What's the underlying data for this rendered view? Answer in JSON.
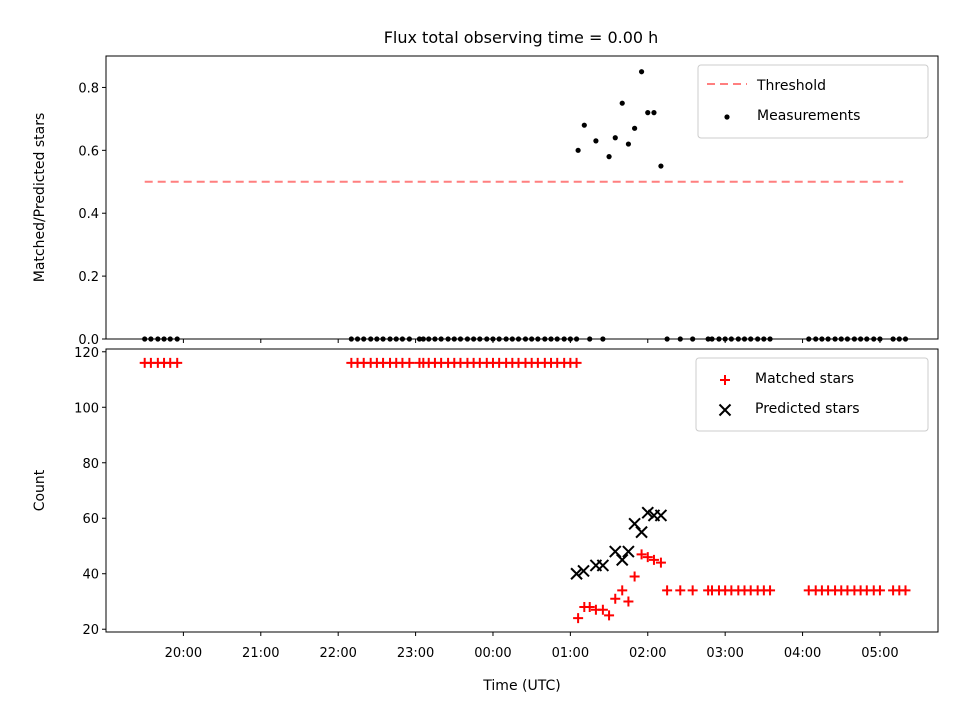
{
  "figure": {
    "title": "Flux total observing time = 0.00 h"
  },
  "chart_data": [
    {
      "type": "scatter",
      "ylabel": "Matched/Predicted stars",
      "xlabel": "",
      "ylim": [
        0.0,
        0.9
      ],
      "yticks": [
        0.0,
        0.2,
        0.4,
        0.6,
        0.8
      ],
      "ytick_labels": [
        "0.0",
        "0.2",
        "0.4",
        "0.6",
        "0.8"
      ],
      "xlim_hours": [
        -5.0,
        5.75
      ],
      "legend_position": "upper right",
      "series": [
        {
          "name": "Threshold",
          "kind": "dashed-line",
          "color": "#ff7f7f",
          "x": [
            -4.5,
            5.3
          ],
          "y": [
            0.5,
            0.5
          ]
        },
        {
          "name": "Measurements",
          "kind": "dots",
          "color": "#000000",
          "x": [
            -4.5,
            -4.42,
            -4.33,
            -4.25,
            -4.17,
            -4.08,
            -1.83,
            -1.75,
            -1.67,
            -1.58,
            -1.5,
            -1.42,
            -1.33,
            -1.25,
            -1.17,
            -1.08,
            -0.95,
            -0.9,
            -0.83,
            -0.75,
            -0.67,
            -0.58,
            -0.5,
            -0.42,
            -0.33,
            -0.25,
            -0.17,
            -0.08,
            0.0,
            0.08,
            0.17,
            0.25,
            0.33,
            0.42,
            0.5,
            0.58,
            0.67,
            0.75,
            0.83,
            0.92,
            1.0,
            1.08,
            1.25,
            1.42,
            2.25,
            2.42,
            2.58,
            2.78,
            2.83,
            2.92,
            3.0,
            3.08,
            3.17,
            3.25,
            3.33,
            3.42,
            3.5,
            3.58,
            4.08,
            4.17,
            4.25,
            4.33,
            4.42,
            4.5,
            4.58,
            4.67,
            4.75,
            4.83,
            4.92,
            5.0,
            5.17,
            5.25,
            5.33,
            1.1,
            1.18,
            1.33,
            1.5,
            1.58,
            1.67,
            1.75,
            1.83,
            1.92,
            2.0,
            2.08,
            2.17
          ],
          "y": [
            0,
            0,
            0,
            0,
            0,
            0,
            0,
            0,
            0,
            0,
            0,
            0,
            0,
            0,
            0,
            0,
            0,
            0,
            0,
            0,
            0,
            0,
            0,
            0,
            0,
            0,
            0,
            0,
            0,
            0,
            0,
            0,
            0,
            0,
            0,
            0,
            0,
            0,
            0,
            0,
            0,
            0,
            0,
            0,
            0,
            0,
            0,
            0,
            0,
            0,
            0,
            0,
            0,
            0,
            0,
            0,
            0,
            0,
            0,
            0,
            0,
            0,
            0,
            0,
            0,
            0,
            0,
            0,
            0,
            0,
            0,
            0,
            0,
            0.6,
            0.68,
            0.63,
            0.58,
            0.64,
            0.75,
            0.62,
            0.67,
            0.85,
            0.72,
            0.72,
            0.55
          ]
        }
      ]
    },
    {
      "type": "scatter",
      "xlabel": "Time (UTC)",
      "ylabel": "Count",
      "ylim": [
        19,
        121
      ],
      "yticks": [
        20,
        40,
        60,
        80,
        100,
        120
      ],
      "ytick_labels": [
        "20",
        "40",
        "60",
        "80",
        "100",
        "120"
      ],
      "xlim_hours": [
        -5.0,
        5.75
      ],
      "xticks_hours": [
        -4.0,
        -3.0,
        -2.0,
        -1.0,
        0.0,
        1.0,
        2.0,
        3.0,
        4.0,
        5.0
      ],
      "xtick_labels": [
        "20:00",
        "21:00",
        "22:00",
        "23:00",
        "00:00",
        "01:00",
        "02:00",
        "03:00",
        "04:00",
        "05:00"
      ],
      "legend_position": "upper right",
      "series": [
        {
          "name": "Matched stars",
          "kind": "plus",
          "color": "#ff0000",
          "x": [
            -4.5,
            -4.42,
            -4.33,
            -4.25,
            -4.17,
            -4.08,
            -1.83,
            -1.75,
            -1.67,
            -1.58,
            -1.5,
            -1.42,
            -1.33,
            -1.25,
            -1.17,
            -1.08,
            -0.95,
            -0.9,
            -0.83,
            -0.75,
            -0.67,
            -0.58,
            -0.5,
            -0.42,
            -0.33,
            -0.25,
            -0.17,
            -0.08,
            0.0,
            0.08,
            0.17,
            0.25,
            0.33,
            0.42,
            0.5,
            0.58,
            0.67,
            0.75,
            0.83,
            0.92,
            1.0,
            1.08,
            1.1,
            1.18,
            1.25,
            1.33,
            1.42,
            1.5,
            1.58,
            1.67,
            1.75,
            1.83,
            1.92,
            2.0,
            2.08,
            2.17,
            2.25,
            2.42,
            2.58,
            2.78,
            2.83,
            2.92,
            3.0,
            3.08,
            3.17,
            3.25,
            3.33,
            3.42,
            3.5,
            3.58,
            4.08,
            4.17,
            4.25,
            4.33,
            4.42,
            4.5,
            4.58,
            4.67,
            4.75,
            4.83,
            4.92,
            5.0,
            5.17,
            5.25,
            5.33
          ],
          "y": [
            116,
            116,
            116,
            116,
            116,
            116,
            116,
            116,
            116,
            116,
            116,
            116,
            116,
            116,
            116,
            116,
            116,
            116,
            116,
            116,
            116,
            116,
            116,
            116,
            116,
            116,
            116,
            116,
            116,
            116,
            116,
            116,
            116,
            116,
            116,
            116,
            116,
            116,
            116,
            116,
            116,
            116,
            24,
            28,
            28,
            27,
            27,
            25,
            31,
            34,
            30,
            39,
            47,
            46,
            45,
            44,
            34,
            34,
            34,
            34,
            34,
            34,
            34,
            34,
            34,
            34,
            34,
            34,
            34,
            34,
            34,
            34,
            34,
            34,
            34,
            34,
            34,
            34,
            34,
            34,
            34,
            34,
            34,
            34,
            34
          ]
        },
        {
          "name": "Predicted stars",
          "kind": "x",
          "color": "#000000",
          "x": [
            1.08,
            1.17,
            1.33,
            1.42,
            1.58,
            1.67,
            1.75,
            1.83,
            1.92,
            2.0,
            2.08,
            2.17
          ],
          "y": [
            40,
            41,
            43,
            43,
            48,
            45,
            48,
            58,
            55,
            62,
            61,
            61
          ]
        }
      ]
    }
  ]
}
